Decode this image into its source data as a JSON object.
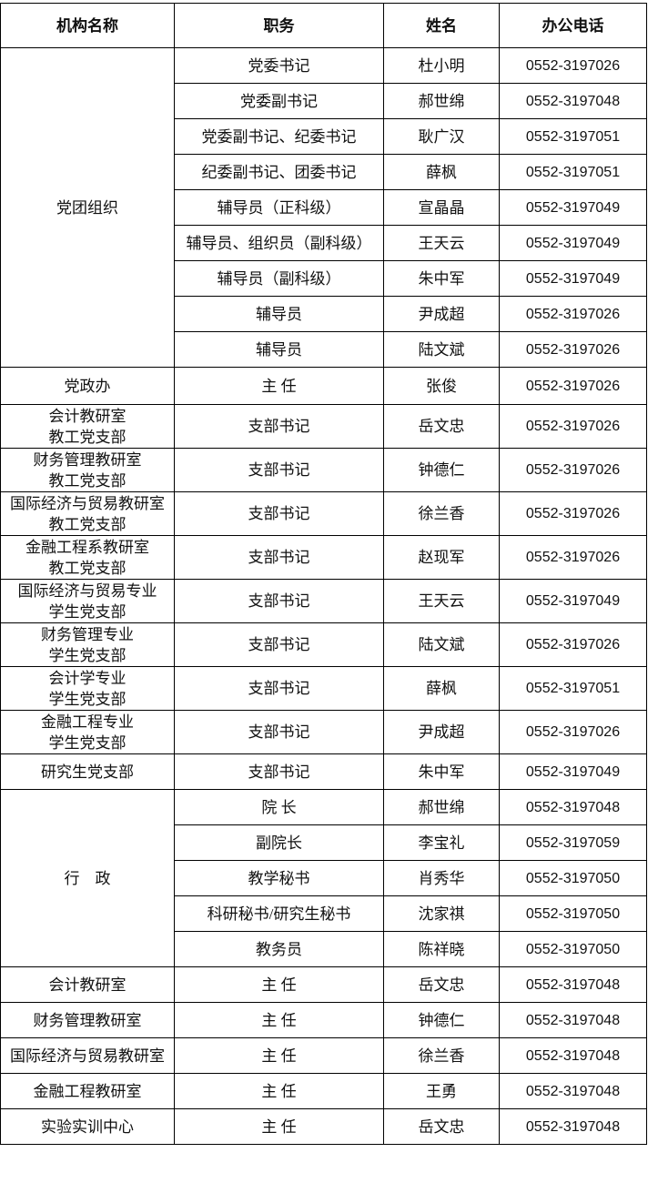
{
  "table": {
    "header": [
      "机构名称",
      "职务",
      "姓名",
      "办公电话"
    ],
    "groups": [
      {
        "org": "党团组织",
        "rows": [
          {
            "title": "党委书记",
            "name": "杜小明",
            "phone": "0552-3197026"
          },
          {
            "title": "党委副书记",
            "name": "郝世绵",
            "phone": "0552-3197048"
          },
          {
            "title": "党委副书记、纪委书记",
            "name": "耿广汉",
            "phone": "0552-3197051"
          },
          {
            "title": "纪委副书记、团委书记",
            "name": "薛枫",
            "phone": "0552-3197051"
          },
          {
            "title": "辅导员（正科级）",
            "name": "宣晶晶",
            "phone": "0552-3197049"
          },
          {
            "title": "辅导员、组织员（副科级）",
            "name": "王天云",
            "phone": "0552-3197049"
          },
          {
            "title": "辅导员（副科级）",
            "name": "朱中军",
            "phone": "0552-3197049"
          },
          {
            "title": "辅导员",
            "name": "尹成超",
            "phone": "0552-3197026"
          },
          {
            "title": "辅导员",
            "name": "陆文斌",
            "phone": "0552-3197026"
          }
        ]
      },
      {
        "org": "党政办",
        "rows": [
          {
            "title": "主 任",
            "name": "张俊",
            "phone": "0552-3197026"
          }
        ]
      },
      {
        "org": "会计教研室\n教工党支部",
        "rows": [
          {
            "title": "支部书记",
            "name": "岳文忠",
            "phone": "0552-3197026"
          }
        ]
      },
      {
        "org": "财务管理教研室\n教工党支部",
        "rows": [
          {
            "title": "支部书记",
            "name": "钟德仁",
            "phone": "0552-3197026"
          }
        ]
      },
      {
        "org": "国际经济与贸易教研室\n教工党支部",
        "rows": [
          {
            "title": "支部书记",
            "name": "徐兰香",
            "phone": "0552-3197026"
          }
        ]
      },
      {
        "org": "金融工程系教研室\n教工党支部",
        "rows": [
          {
            "title": "支部书记",
            "name": "赵现军",
            "phone": "0552-3197026"
          }
        ]
      },
      {
        "org": "国际经济与贸易专业\n学生党支部",
        "rows": [
          {
            "title": "支部书记",
            "name": "王天云",
            "phone": "0552-3197049"
          }
        ]
      },
      {
        "org": "财务管理专业\n学生党支部",
        "rows": [
          {
            "title": "支部书记",
            "name": "陆文斌",
            "phone": "0552-3197026"
          }
        ]
      },
      {
        "org": "会计学专业\n学生党支部",
        "rows": [
          {
            "title": "支部书记",
            "name": "薛枫",
            "phone": "0552-3197051"
          }
        ]
      },
      {
        "org": "金融工程专业\n学生党支部",
        "rows": [
          {
            "title": "支部书记",
            "name": "尹成超",
            "phone": "0552-3197026"
          }
        ]
      },
      {
        "org": "研究生党支部",
        "rows": [
          {
            "title": "支部书记",
            "name": "朱中军",
            "phone": "0552-3197049"
          }
        ]
      },
      {
        "org": "行　政",
        "rows": [
          {
            "title": "院 长",
            "name": "郝世绵",
            "phone": "0552-3197048"
          },
          {
            "title": "副院长",
            "name": "李宝礼",
            "phone": "0552-3197059"
          },
          {
            "title": "教学秘书",
            "name": "肖秀华",
            "phone": "0552-3197050"
          },
          {
            "title": "科研秘书/研究生秘书",
            "name": "沈家祺",
            "phone": "0552-3197050"
          },
          {
            "title": "教务员",
            "name": "陈祥晓",
            "phone": "0552-3197050"
          }
        ]
      },
      {
        "org": "会计教研室",
        "rows": [
          {
            "title": "主 任",
            "name": "岳文忠",
            "phone": "0552-3197048"
          }
        ]
      },
      {
        "org": "财务管理教研室",
        "rows": [
          {
            "title": "主 任",
            "name": "钟德仁",
            "phone": "0552-3197048"
          }
        ]
      },
      {
        "org": "国际经济与贸易教研室",
        "rows": [
          {
            "title": "主 任",
            "name": "徐兰香",
            "phone": "0552-3197048"
          }
        ]
      },
      {
        "org": "金融工程教研室",
        "rows": [
          {
            "title": "主 任",
            "name": "王勇",
            "phone": "0552-3197048"
          }
        ]
      },
      {
        "org": "实验实训中心",
        "rows": [
          {
            "title": "主 任",
            "name": "岳文忠",
            "phone": "0552-3197048"
          }
        ]
      }
    ]
  }
}
